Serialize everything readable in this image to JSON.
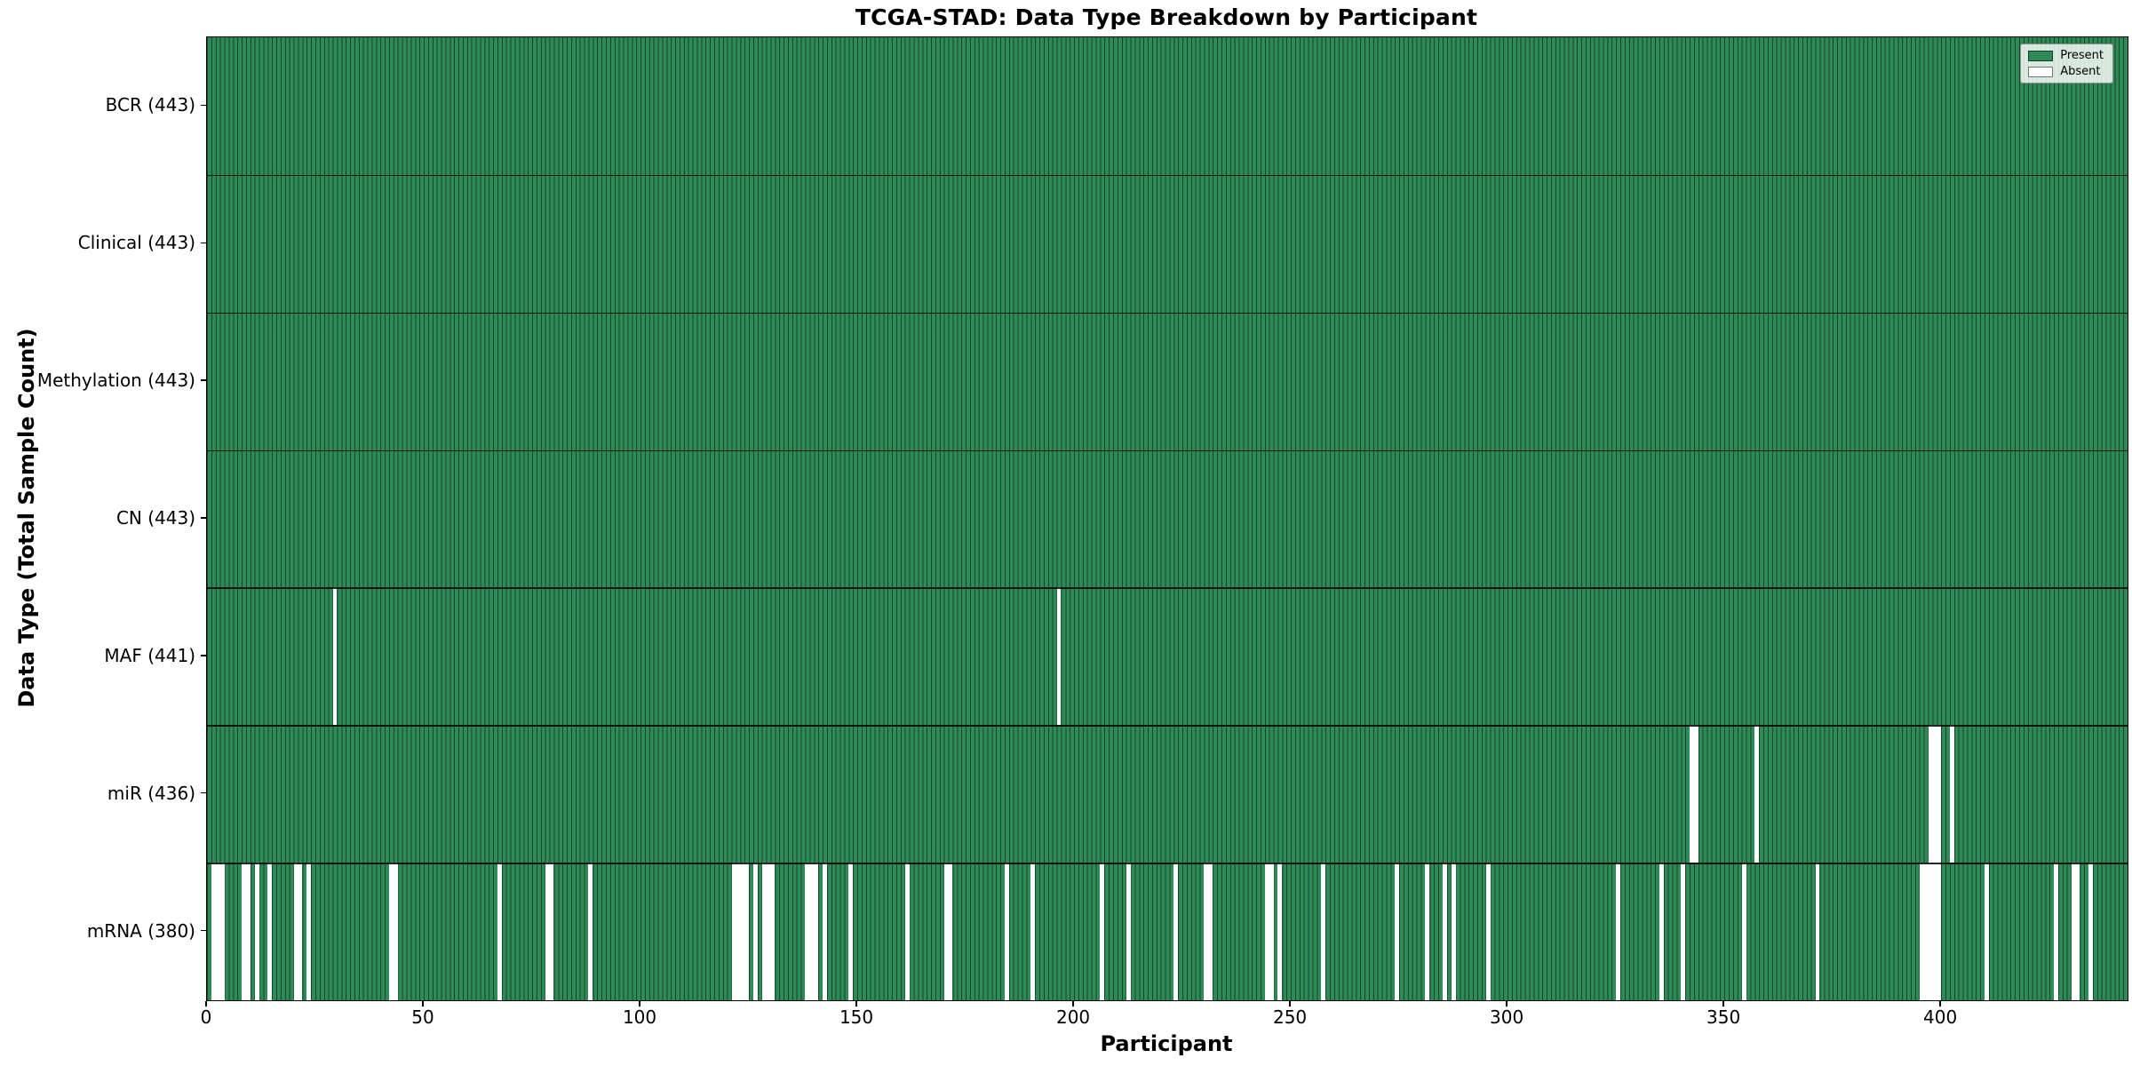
{
  "title": "TCGA-STAD: Data Type Breakdown by Participant",
  "xlabel": "Participant",
  "ylabel": "Data Type (Total Sample Count)",
  "legend": {
    "position": "upper right",
    "entries": [
      {
        "label": "Present",
        "color": "#2e8b57"
      },
      {
        "label": "Absent",
        "color": "#ffffff"
      }
    ]
  },
  "colors": {
    "present": "#2e8b57",
    "absent": "#ffffff",
    "bar_edge": "rgba(0,0,0,0.5)",
    "row_separator": "rgba(0,0,0,0.85)",
    "spine": "#000000"
  },
  "chart_data": {
    "type": "heatmap",
    "title": "TCGA-STAD: Data Type Breakdown by Participant",
    "xlabel": "Participant",
    "ylabel": "Data Type (Total Sample Count)",
    "x_ticks": [
      0,
      50,
      100,
      150,
      200,
      250,
      300,
      350,
      400
    ],
    "x_range": [
      0,
      443
    ],
    "n_participants": 443,
    "value_encoding": {
      "present": 1,
      "absent": 0
    },
    "legend_entries": [
      "Present",
      "Absent"
    ],
    "grid": false,
    "rows": [
      {
        "label": "BCR (443)",
        "data_type": "BCR",
        "present_count": 443,
        "absent_participants": []
      },
      {
        "label": "Clinical (443)",
        "data_type": "Clinical",
        "present_count": 443,
        "absent_participants": []
      },
      {
        "label": "Methylation (443)",
        "data_type": "Methylation",
        "present_count": 443,
        "absent_participants": []
      },
      {
        "label": "CN (443)",
        "data_type": "CN",
        "present_count": 443,
        "absent_participants": []
      },
      {
        "label": "MAF (441)",
        "data_type": "MAF",
        "present_count": 441,
        "absent_participants": [
          29,
          196
        ]
      },
      {
        "label": "miR (436)",
        "data_type": "miR",
        "present_count": 436,
        "absent_participants": [
          342,
          343,
          357,
          397,
          398,
          399,
          402
        ]
      },
      {
        "label": "mRNA (380)",
        "data_type": "mRNA",
        "present_count": 380,
        "absent_participants": [
          1,
          2,
          3,
          8,
          9,
          11,
          14,
          20,
          21,
          23,
          42,
          43,
          67,
          78,
          79,
          88,
          121,
          122,
          123,
          124,
          126,
          128,
          129,
          130,
          138,
          139,
          140,
          142,
          148,
          161,
          170,
          171,
          184,
          190,
          206,
          212,
          223,
          230,
          231,
          244,
          245,
          247,
          257,
          274,
          281,
          285,
          287,
          295,
          325,
          335,
          340,
          354,
          371,
          395,
          396,
          397,
          398,
          399,
          410,
          426,
          430,
          431,
          434
        ]
      }
    ]
  }
}
